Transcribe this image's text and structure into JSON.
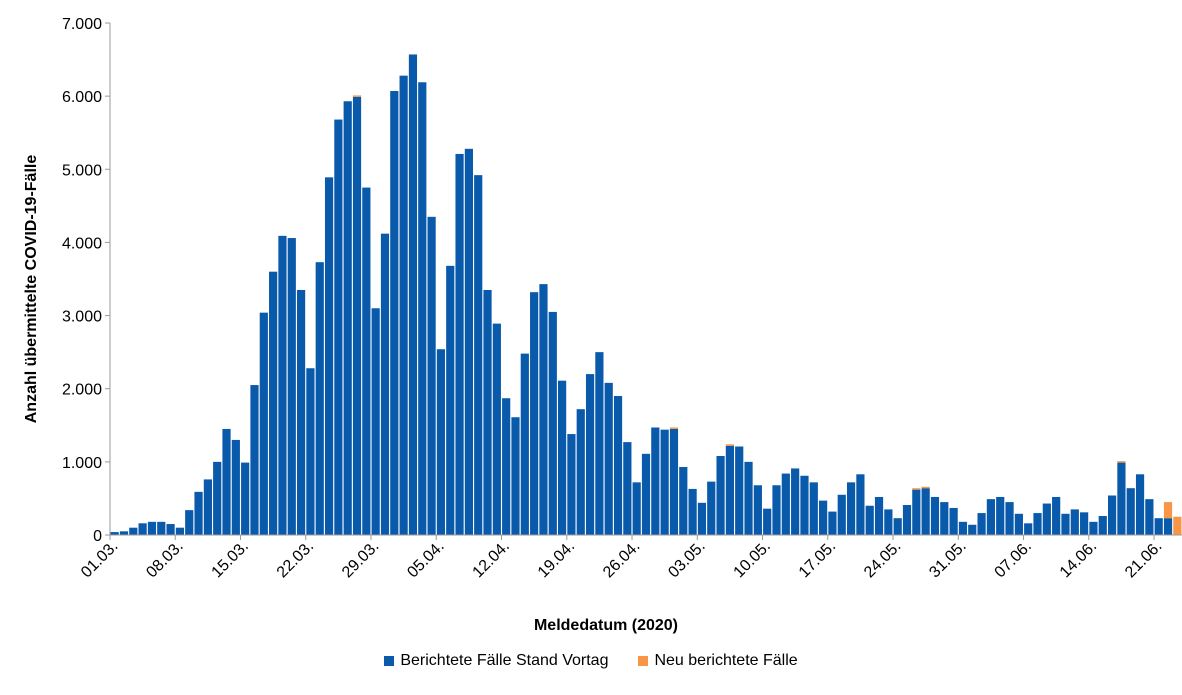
{
  "chart_data": {
    "type": "bar",
    "stacked": true,
    "xlabel": "Meldedatum (2020)",
    "ylabel": "Anzahl übermittelte COVID-19-Fälle",
    "ylim": [
      0,
      7000
    ],
    "yticks": [
      "0",
      "1.000",
      "2.000",
      "3.000",
      "4.000",
      "5.000",
      "6.000",
      "7.000"
    ],
    "x_tick_labels": [
      "01.03.",
      "08.03.",
      "15.03.",
      "22.03.",
      "29.03.",
      "05.04.",
      "12.04.",
      "19.04.",
      "26.04.",
      "03.05.",
      "10.05.",
      "17.05.",
      "24.05.",
      "31.05.",
      "07.06.",
      "14.06.",
      "21.06."
    ],
    "tick_every_n_days": 7,
    "first_date": "01.03.",
    "legend_position": "bottom",
    "series": [
      {
        "name": "Berichtete Fälle Stand Vortag",
        "color": "#0a5aab",
        "values": [
          40,
          50,
          100,
          160,
          180,
          180,
          150,
          100,
          340,
          590,
          760,
          1000,
          1450,
          1300,
          990,
          2050,
          3040,
          3600,
          4090,
          4060,
          3350,
          2280,
          3730,
          4890,
          5680,
          5930,
          5990,
          4750,
          3100,
          4120,
          6070,
          6280,
          6570,
          6190,
          4350,
          2540,
          3680,
          5210,
          5280,
          4920,
          3350,
          2890,
          1870,
          1610,
          2480,
          3320,
          3430,
          3050,
          2110,
          1380,
          1720,
          2200,
          2500,
          2080,
          1900,
          1270,
          720,
          1110,
          1470,
          1440,
          1450,
          930,
          630,
          440,
          730,
          1080,
          1220,
          1210,
          1000,
          680,
          360,
          680,
          840,
          910,
          810,
          720,
          470,
          320,
          550,
          720,
          830,
          400,
          520,
          350,
          230,
          410,
          620,
          640,
          520,
          450,
          370,
          180,
          140,
          300,
          490,
          520,
          450,
          290,
          160,
          300,
          430,
          520,
          290,
          350,
          310,
          180,
          260,
          540,
          990,
          640,
          830,
          490,
          230,
          230,
          0
        ]
      },
      {
        "name": "Neu berichtete Fälle",
        "color": "#f79646",
        "values": [
          0,
          0,
          0,
          0,
          0,
          0,
          0,
          0,
          0,
          0,
          0,
          0,
          0,
          0,
          0,
          0,
          0,
          0,
          0,
          0,
          0,
          0,
          0,
          0,
          0,
          0,
          20,
          0,
          0,
          0,
          0,
          0,
          0,
          0,
          0,
          0,
          0,
          0,
          0,
          0,
          0,
          0,
          0,
          0,
          0,
          0,
          0,
          0,
          0,
          0,
          0,
          0,
          0,
          0,
          0,
          0,
          0,
          0,
          0,
          0,
          20,
          0,
          0,
          0,
          0,
          0,
          20,
          0,
          0,
          0,
          0,
          0,
          0,
          0,
          0,
          0,
          0,
          0,
          0,
          0,
          0,
          0,
          0,
          0,
          0,
          0,
          20,
          20,
          0,
          0,
          0,
          0,
          0,
          0,
          0,
          0,
          0,
          0,
          0,
          0,
          0,
          0,
          0,
          0,
          0,
          0,
          0,
          0,
          20,
          0,
          0,
          0,
          0,
          220,
          250
        ]
      }
    ]
  }
}
